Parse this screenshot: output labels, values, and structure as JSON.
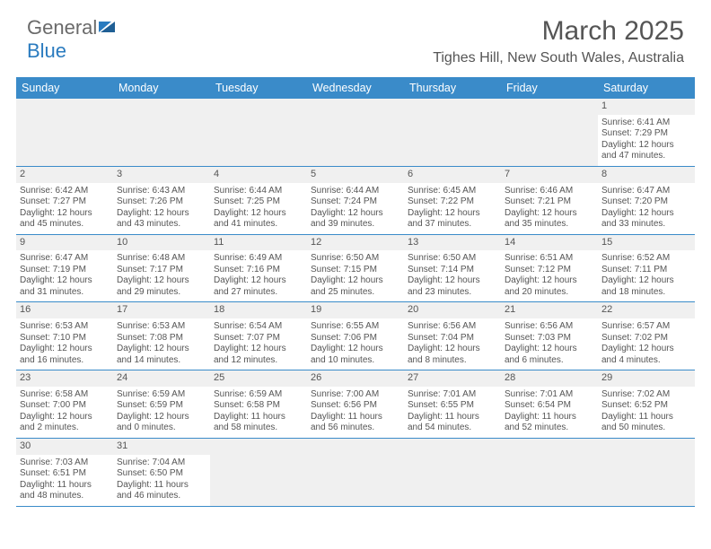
{
  "logo": {
    "general": "General",
    "blue": "Blue"
  },
  "title": "March 2025",
  "location": "Tighes Hill, New South Wales, Australia",
  "colors": {
    "header_bg": "#3a8bc9",
    "accent": "#2a7bbf",
    "text": "#555555",
    "blank_bg": "#f0f0f0"
  },
  "dayNames": [
    "Sunday",
    "Monday",
    "Tuesday",
    "Wednesday",
    "Thursday",
    "Friday",
    "Saturday"
  ],
  "weeks": [
    [
      {
        "blank": true
      },
      {
        "blank": true
      },
      {
        "blank": true
      },
      {
        "blank": true
      },
      {
        "blank": true
      },
      {
        "blank": true
      },
      {
        "day": "1",
        "sunrise": "Sunrise: 6:41 AM",
        "sunset": "Sunset: 7:29 PM",
        "daylight1": "Daylight: 12 hours",
        "daylight2": "and 47 minutes."
      }
    ],
    [
      {
        "day": "2",
        "sunrise": "Sunrise: 6:42 AM",
        "sunset": "Sunset: 7:27 PM",
        "daylight1": "Daylight: 12 hours",
        "daylight2": "and 45 minutes."
      },
      {
        "day": "3",
        "sunrise": "Sunrise: 6:43 AM",
        "sunset": "Sunset: 7:26 PM",
        "daylight1": "Daylight: 12 hours",
        "daylight2": "and 43 minutes."
      },
      {
        "day": "4",
        "sunrise": "Sunrise: 6:44 AM",
        "sunset": "Sunset: 7:25 PM",
        "daylight1": "Daylight: 12 hours",
        "daylight2": "and 41 minutes."
      },
      {
        "day": "5",
        "sunrise": "Sunrise: 6:44 AM",
        "sunset": "Sunset: 7:24 PM",
        "daylight1": "Daylight: 12 hours",
        "daylight2": "and 39 minutes."
      },
      {
        "day": "6",
        "sunrise": "Sunrise: 6:45 AM",
        "sunset": "Sunset: 7:22 PM",
        "daylight1": "Daylight: 12 hours",
        "daylight2": "and 37 minutes."
      },
      {
        "day": "7",
        "sunrise": "Sunrise: 6:46 AM",
        "sunset": "Sunset: 7:21 PM",
        "daylight1": "Daylight: 12 hours",
        "daylight2": "and 35 minutes."
      },
      {
        "day": "8",
        "sunrise": "Sunrise: 6:47 AM",
        "sunset": "Sunset: 7:20 PM",
        "daylight1": "Daylight: 12 hours",
        "daylight2": "and 33 minutes."
      }
    ],
    [
      {
        "day": "9",
        "sunrise": "Sunrise: 6:47 AM",
        "sunset": "Sunset: 7:19 PM",
        "daylight1": "Daylight: 12 hours",
        "daylight2": "and 31 minutes."
      },
      {
        "day": "10",
        "sunrise": "Sunrise: 6:48 AM",
        "sunset": "Sunset: 7:17 PM",
        "daylight1": "Daylight: 12 hours",
        "daylight2": "and 29 minutes."
      },
      {
        "day": "11",
        "sunrise": "Sunrise: 6:49 AM",
        "sunset": "Sunset: 7:16 PM",
        "daylight1": "Daylight: 12 hours",
        "daylight2": "and 27 minutes."
      },
      {
        "day": "12",
        "sunrise": "Sunrise: 6:50 AM",
        "sunset": "Sunset: 7:15 PM",
        "daylight1": "Daylight: 12 hours",
        "daylight2": "and 25 minutes."
      },
      {
        "day": "13",
        "sunrise": "Sunrise: 6:50 AM",
        "sunset": "Sunset: 7:14 PM",
        "daylight1": "Daylight: 12 hours",
        "daylight2": "and 23 minutes."
      },
      {
        "day": "14",
        "sunrise": "Sunrise: 6:51 AM",
        "sunset": "Sunset: 7:12 PM",
        "daylight1": "Daylight: 12 hours",
        "daylight2": "and 20 minutes."
      },
      {
        "day": "15",
        "sunrise": "Sunrise: 6:52 AM",
        "sunset": "Sunset: 7:11 PM",
        "daylight1": "Daylight: 12 hours",
        "daylight2": "and 18 minutes."
      }
    ],
    [
      {
        "day": "16",
        "sunrise": "Sunrise: 6:53 AM",
        "sunset": "Sunset: 7:10 PM",
        "daylight1": "Daylight: 12 hours",
        "daylight2": "and 16 minutes."
      },
      {
        "day": "17",
        "sunrise": "Sunrise: 6:53 AM",
        "sunset": "Sunset: 7:08 PM",
        "daylight1": "Daylight: 12 hours",
        "daylight2": "and 14 minutes."
      },
      {
        "day": "18",
        "sunrise": "Sunrise: 6:54 AM",
        "sunset": "Sunset: 7:07 PM",
        "daylight1": "Daylight: 12 hours",
        "daylight2": "and 12 minutes."
      },
      {
        "day": "19",
        "sunrise": "Sunrise: 6:55 AM",
        "sunset": "Sunset: 7:06 PM",
        "daylight1": "Daylight: 12 hours",
        "daylight2": "and 10 minutes."
      },
      {
        "day": "20",
        "sunrise": "Sunrise: 6:56 AM",
        "sunset": "Sunset: 7:04 PM",
        "daylight1": "Daylight: 12 hours",
        "daylight2": "and 8 minutes."
      },
      {
        "day": "21",
        "sunrise": "Sunrise: 6:56 AM",
        "sunset": "Sunset: 7:03 PM",
        "daylight1": "Daylight: 12 hours",
        "daylight2": "and 6 minutes."
      },
      {
        "day": "22",
        "sunrise": "Sunrise: 6:57 AM",
        "sunset": "Sunset: 7:02 PM",
        "daylight1": "Daylight: 12 hours",
        "daylight2": "and 4 minutes."
      }
    ],
    [
      {
        "day": "23",
        "sunrise": "Sunrise: 6:58 AM",
        "sunset": "Sunset: 7:00 PM",
        "daylight1": "Daylight: 12 hours",
        "daylight2": "and 2 minutes."
      },
      {
        "day": "24",
        "sunrise": "Sunrise: 6:59 AM",
        "sunset": "Sunset: 6:59 PM",
        "daylight1": "Daylight: 12 hours",
        "daylight2": "and 0 minutes."
      },
      {
        "day": "25",
        "sunrise": "Sunrise: 6:59 AM",
        "sunset": "Sunset: 6:58 PM",
        "daylight1": "Daylight: 11 hours",
        "daylight2": "and 58 minutes."
      },
      {
        "day": "26",
        "sunrise": "Sunrise: 7:00 AM",
        "sunset": "Sunset: 6:56 PM",
        "daylight1": "Daylight: 11 hours",
        "daylight2": "and 56 minutes."
      },
      {
        "day": "27",
        "sunrise": "Sunrise: 7:01 AM",
        "sunset": "Sunset: 6:55 PM",
        "daylight1": "Daylight: 11 hours",
        "daylight2": "and 54 minutes."
      },
      {
        "day": "28",
        "sunrise": "Sunrise: 7:01 AM",
        "sunset": "Sunset: 6:54 PM",
        "daylight1": "Daylight: 11 hours",
        "daylight2": "and 52 minutes."
      },
      {
        "day": "29",
        "sunrise": "Sunrise: 7:02 AM",
        "sunset": "Sunset: 6:52 PM",
        "daylight1": "Daylight: 11 hours",
        "daylight2": "and 50 minutes."
      }
    ],
    [
      {
        "day": "30",
        "sunrise": "Sunrise: 7:03 AM",
        "sunset": "Sunset: 6:51 PM",
        "daylight1": "Daylight: 11 hours",
        "daylight2": "and 48 minutes."
      },
      {
        "day": "31",
        "sunrise": "Sunrise: 7:04 AM",
        "sunset": "Sunset: 6:50 PM",
        "daylight1": "Daylight: 11 hours",
        "daylight2": "and 46 minutes."
      },
      {
        "blank": true
      },
      {
        "blank": true
      },
      {
        "blank": true
      },
      {
        "blank": true
      },
      {
        "blank": true
      }
    ]
  ]
}
